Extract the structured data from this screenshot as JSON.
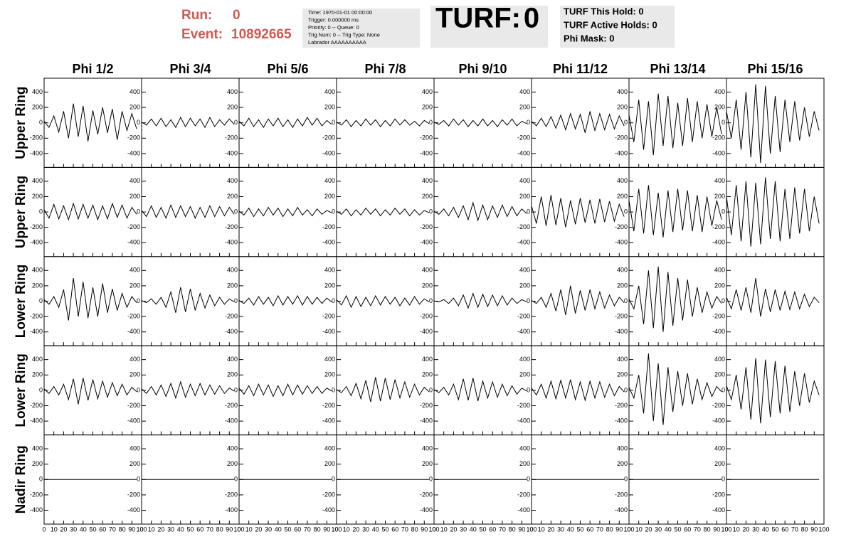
{
  "header": {
    "run_label": "Run:",
    "run_value": 0,
    "event_label": "Event:",
    "event_value": 10892665,
    "info_lines": [
      "Time: 1970-01-01 00:00:00",
      "Trigger: 0.000000 ms",
      "Priority: 0 -- Queue: 0",
      "Trig Num: 0 -- Trig Type: None",
      "Labrador AAAAAAAAAA"
    ],
    "turf_label": "TURF:",
    "turf_value": 0,
    "turf_lines": [
      "TURF This Hold: 0",
      "TURF Active Holds: 0",
      "Phi Mask: 0"
    ]
  },
  "display": {
    "columns": [
      "Phi 1/2",
      "Phi 3/4",
      "Phi 5/6",
      "Phi 7/8",
      "Phi 9/10",
      "Phi 11/12",
      "Phi 13/14",
      "Phi 15/16"
    ],
    "xlim": [
      0,
      100
    ],
    "xticks": [
      0,
      10,
      20,
      30,
      40,
      50,
      60,
      70,
      80,
      90,
      100
    ],
    "ylim": [
      -580,
      580
    ],
    "yticks": [
      -400,
      -200,
      0,
      200,
      400
    ],
    "x": [
      0,
      5,
      10,
      15,
      20,
      25,
      30,
      35,
      40,
      45,
      50,
      55,
      60,
      65,
      70,
      75,
      80,
      85,
      90,
      95
    ],
    "color": "#000000",
    "rings": [
      {
        "label": "Upper Ring",
        "waveforms": [
          [
            20,
            -60,
            90,
            -120,
            150,
            -200,
            250,
            -180,
            220,
            -240,
            160,
            -150,
            200,
            -130,
            180,
            -220,
            150,
            -100,
            120,
            -80
          ],
          [
            10,
            -30,
            50,
            -40,
            60,
            -50,
            40,
            -60,
            70,
            -50,
            60,
            -40,
            50,
            -60,
            70,
            -50,
            40,
            -30,
            50,
            -20
          ],
          [
            20,
            -40,
            60,
            -50,
            40,
            -60,
            50,
            -40,
            60,
            -50,
            40,
            -60,
            50,
            -40,
            70,
            -30,
            60,
            -40,
            30,
            -20
          ],
          [
            10,
            -30,
            40,
            -50,
            30,
            -40,
            50,
            -30,
            40,
            -50,
            30,
            -40,
            50,
            -30,
            40,
            -30,
            20,
            -40,
            30,
            -10
          ],
          [
            10,
            -20,
            30,
            -40,
            50,
            -30,
            40,
            -50,
            30,
            -40,
            50,
            -40,
            30,
            -50,
            40,
            -30,
            50,
            -40,
            20,
            -10
          ],
          [
            20,
            -40,
            60,
            -50,
            80,
            -70,
            100,
            -90,
            120,
            -80,
            110,
            -130,
            150,
            -100,
            120,
            -90,
            110,
            -80,
            90,
            -40
          ],
          [
            100,
            -250,
            300,
            -350,
            280,
            -420,
            380,
            -300,
            350,
            -330,
            260,
            -300,
            320,
            -250,
            280,
            -200,
            240,
            -180,
            200,
            -150
          ],
          [
            150,
            -200,
            300,
            -350,
            400,
            -450,
            500,
            -520,
            480,
            -400,
            350,
            -380,
            300,
            -250,
            280,
            -230,
            200,
            -180,
            150,
            -100
          ]
        ]
      },
      {
        "label": "Upper Ring",
        "waveforms": [
          [
            30,
            -80,
            100,
            -90,
            80,
            -100,
            110,
            -90,
            100,
            -80,
            90,
            -100,
            80,
            -90,
            110,
            -70,
            90,
            -80,
            60,
            -30
          ],
          [
            20,
            -60,
            80,
            -70,
            60,
            -80,
            90,
            -70,
            80,
            -60,
            70,
            -80,
            60,
            -70,
            80,
            -60,
            70,
            -50,
            60,
            -30
          ],
          [
            10,
            -40,
            50,
            -60,
            40,
            -50,
            60,
            -40,
            50,
            -60,
            40,
            -50,
            60,
            -40,
            30,
            -50,
            40,
            -30,
            20,
            -10
          ],
          [
            10,
            -30,
            40,
            -50,
            30,
            -40,
            50,
            -30,
            40,
            -50,
            30,
            -40,
            50,
            -30,
            40,
            -50,
            30,
            -40,
            20,
            -10
          ],
          [
            10,
            -30,
            40,
            -50,
            60,
            -70,
            80,
            -100,
            120,
            -110,
            90,
            -100,
            80,
            -70,
            90,
            -60,
            70,
            -50,
            40,
            -20
          ],
          [
            80,
            -150,
            200,
            -180,
            220,
            -170,
            180,
            -200,
            150,
            -160,
            180,
            -140,
            160,
            -150,
            170,
            -130,
            140,
            -120,
            100,
            -60
          ],
          [
            150,
            -250,
            300,
            -280,
            350,
            -300,
            250,
            -330,
            280,
            -260,
            300,
            -240,
            280,
            -250,
            220,
            -260,
            200,
            -180,
            150,
            -100
          ],
          [
            200,
            -300,
            350,
            -380,
            400,
            -450,
            380,
            -420,
            450,
            -350,
            400,
            -380,
            300,
            -350,
            320,
            -280,
            300,
            -250,
            200,
            -150
          ]
        ]
      },
      {
        "label": "Lower Ring",
        "waveforms": [
          [
            20,
            -40,
            60,
            -80,
            150,
            -250,
            300,
            -200,
            250,
            -220,
            180,
            -200,
            230,
            -150,
            160,
            -120,
            100,
            -80,
            60,
            -20
          ],
          [
            10,
            -20,
            30,
            -40,
            50,
            -80,
            120,
            -150,
            180,
            -140,
            160,
            -120,
            100,
            -90,
            80,
            -60,
            50,
            -40,
            30,
            -10
          ],
          [
            10,
            -30,
            40,
            -50,
            60,
            -40,
            50,
            -60,
            70,
            -50,
            60,
            -40,
            70,
            -50,
            60,
            -40,
            50,
            -30,
            40,
            -10
          ],
          [
            20,
            -50,
            70,
            -80,
            60,
            -70,
            50,
            -60,
            70,
            -50,
            60,
            -40,
            50,
            -60,
            40,
            -50,
            60,
            -40,
            30,
            -10
          ],
          [
            5,
            -10,
            20,
            -30,
            40,
            -60,
            80,
            -90,
            100,
            -80,
            90,
            -70,
            80,
            -60,
            70,
            -50,
            40,
            -30,
            20,
            -10
          ],
          [
            10,
            -30,
            50,
            -80,
            100,
            -130,
            150,
            -180,
            200,
            -160,
            140,
            -120,
            150,
            -100,
            120,
            -90,
            80,
            -60,
            50,
            -20
          ],
          [
            30,
            -100,
            200,
            -300,
            400,
            -350,
            450,
            -400,
            380,
            -320,
            300,
            -250,
            280,
            -200,
            180,
            -150,
            120,
            -90,
            60,
            -30
          ],
          [
            50,
            -100,
            150,
            -120,
            180,
            -150,
            300,
            -200,
            160,
            -140,
            150,
            -120,
            130,
            -110,
            120,
            -100,
            90,
            -70,
            50,
            -20
          ]
        ]
      },
      {
        "label": "Lower Ring",
        "waveforms": [
          [
            20,
            -40,
            50,
            -60,
            80,
            -120,
            150,
            -180,
            160,
            -130,
            140,
            -110,
            120,
            -90,
            100,
            -70,
            80,
            -60,
            40,
            -20
          ],
          [
            20,
            -40,
            50,
            -60,
            70,
            -80,
            90,
            -100,
            110,
            -90,
            80,
            -70,
            90,
            -60,
            70,
            -50,
            60,
            -40,
            30,
            -10
          ],
          [
            30,
            -50,
            60,
            -70,
            80,
            -60,
            70,
            -80,
            60,
            -70,
            80,
            -60,
            70,
            -50,
            60,
            -40,
            50,
            -40,
            30,
            -10
          ],
          [
            10,
            -30,
            50,
            -70,
            90,
            -110,
            130,
            -150,
            170,
            -140,
            160,
            -120,
            140,
            -100,
            110,
            -90,
            80,
            -60,
            40,
            -20
          ],
          [
            10,
            -30,
            40,
            -60,
            80,
            -120,
            150,
            -130,
            160,
            -140,
            120,
            -100,
            110,
            -90,
            80,
            -70,
            60,
            -50,
            30,
            -10
          ],
          [
            30,
            -60,
            80,
            -100,
            120,
            -110,
            130,
            -100,
            140,
            -120,
            110,
            -130,
            120,
            -100,
            110,
            -90,
            80,
            -70,
            50,
            -20
          ],
          [
            40,
            -100,
            200,
            -300,
            480,
            -400,
            350,
            -450,
            300,
            -280,
            250,
            -200,
            220,
            -180,
            150,
            -120,
            100,
            -80,
            50,
            -20
          ],
          [
            60,
            -120,
            200,
            -250,
            300,
            -380,
            420,
            -430,
            400,
            -350,
            380,
            -300,
            320,
            -280,
            250,
            -200,
            220,
            -160,
            120,
            -60
          ]
        ]
      },
      {
        "label": "Nadir Ring",
        "waveforms": [
          [
            0,
            0,
            0,
            0,
            0,
            0,
            0,
            0,
            0,
            0,
            0,
            0,
            0,
            0,
            0,
            0,
            0,
            0,
            0,
            0
          ],
          [
            0,
            0,
            0,
            0,
            0,
            0,
            0,
            0,
            0,
            0,
            0,
            0,
            0,
            0,
            0,
            0,
            0,
            0,
            0,
            0
          ],
          [
            0,
            0,
            0,
            0,
            0,
            0,
            0,
            0,
            0,
            0,
            0,
            0,
            0,
            0,
            0,
            0,
            0,
            0,
            0,
            0
          ],
          [
            0,
            0,
            0,
            0,
            0,
            0,
            0,
            0,
            0,
            0,
            0,
            0,
            0,
            0,
            0,
            0,
            0,
            0,
            0,
            0
          ],
          [
            0,
            0,
            0,
            0,
            0,
            0,
            0,
            0,
            0,
            0,
            0,
            0,
            0,
            0,
            0,
            0,
            0,
            0,
            0,
            0
          ],
          [
            0,
            0,
            0,
            0,
            0,
            0,
            0,
            0,
            0,
            0,
            0,
            0,
            0,
            0,
            0,
            0,
            0,
            0,
            0,
            0
          ],
          [
            0,
            0,
            0,
            0,
            0,
            0,
            0,
            0,
            0,
            0,
            0,
            0,
            0,
            0,
            0,
            0,
            0,
            0,
            0,
            0
          ],
          [
            0,
            0,
            0,
            0,
            0,
            0,
            0,
            0,
            0,
            0,
            0,
            0,
            0,
            0,
            0,
            0,
            0,
            0,
            0,
            0
          ]
        ]
      }
    ]
  }
}
